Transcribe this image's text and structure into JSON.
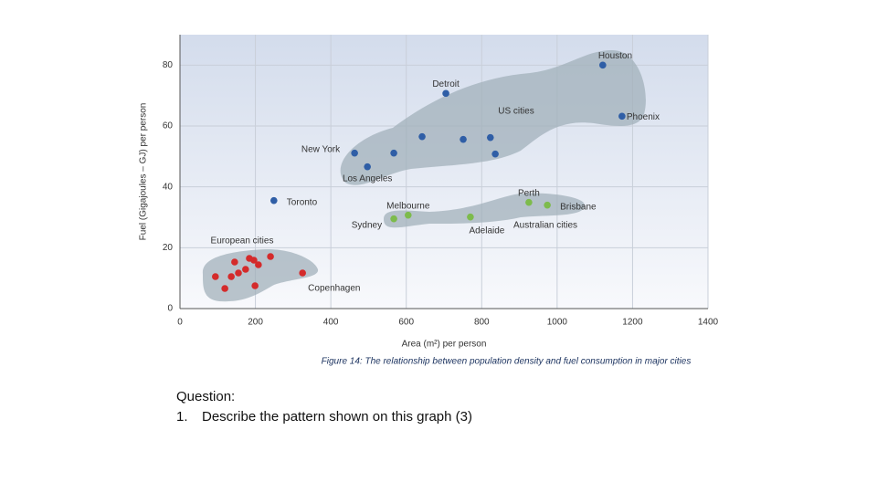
{
  "chart_data": {
    "type": "scatter",
    "x_label": "Area (m²) per person",
    "y_label": "Fuel (Gigajoules – GJ) per person",
    "caption": "Figure 14: The relationship between population density and fuel consumption in major cities",
    "xlim": [
      0,
      1400
    ],
    "xticks": [
      0,
      200,
      400,
      600,
      800,
      1000,
      1200,
      1400
    ],
    "ylim": [
      0,
      90
    ],
    "yticks": [
      0,
      20,
      40,
      60,
      80
    ],
    "grid": true,
    "series": [
      {
        "name": "US cities",
        "color": "#2f5ea6",
        "x": [
          1121,
          1172,
          705,
          463,
          497,
          567,
          642,
          751,
          823,
          836,
          249
        ],
        "values": [
          80,
          63.2,
          70.7,
          51.1,
          46.6,
          51.1,
          56.5,
          55.6,
          56.2,
          50.8,
          35.5
        ],
        "point_labels": [
          "Houston",
          "Phoenix",
          "Detroit",
          "New York",
          "Los Angeles",
          null,
          null,
          null,
          null,
          null,
          "Toronto"
        ]
      },
      {
        "name": "Australian cities",
        "color": "#7dbb4c",
        "x": [
          567,
          605,
          770,
          925,
          974
        ],
        "values": [
          29.5,
          30.7,
          30.1,
          34.9,
          34.0
        ],
        "point_labels": [
          "Sydney",
          "Melbourne",
          "Adelaide",
          "Perth",
          "Brisbane"
        ]
      },
      {
        "name": "European cities",
        "color": "#d42b2b",
        "x": [
          94,
          119,
          136,
          145,
          155,
          174,
          184,
          196,
          208,
          199,
          240,
          325
        ],
        "values": [
          10.5,
          6.6,
          10.5,
          15.3,
          11.7,
          12.9,
          16.5,
          15.9,
          14.4,
          7.5,
          17.1,
          11.7
        ],
        "point_labels": [
          null,
          null,
          null,
          null,
          null,
          null,
          null,
          null,
          null,
          null,
          null,
          "Copenhagen"
        ]
      }
    ]
  },
  "question": {
    "heading": "Question:",
    "items": [
      {
        "number": "1.",
        "text": "Describe the pattern shown on this graph (3)"
      }
    ]
  }
}
